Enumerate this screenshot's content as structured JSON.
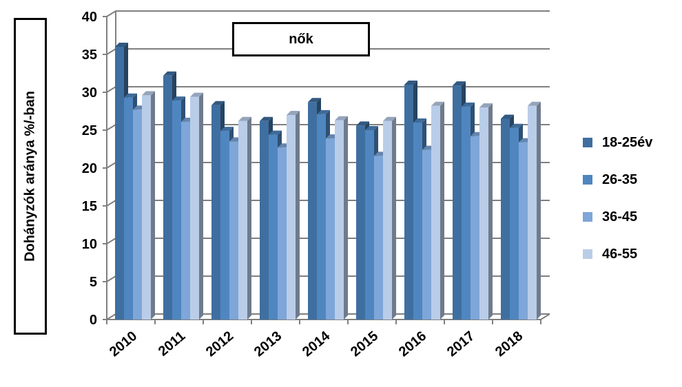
{
  "chart_data": {
    "type": "bar",
    "title": "nők",
    "ylabel": "Dohányzók aránya %/-ban",
    "xlabel": "",
    "ylim": [
      0,
      40
    ],
    "yticks": [
      0,
      5,
      10,
      15,
      20,
      25,
      30,
      35,
      40
    ],
    "grid": true,
    "legend_position": "right",
    "categories": [
      "2010",
      "2011",
      "2012",
      "2013",
      "2014",
      "2015",
      "2016",
      "2017",
      "2018"
    ],
    "series": [
      {
        "name": "18-25év",
        "color": "#3f6fa0",
        "values": [
          36.0,
          32.2,
          28.3,
          26.2,
          28.7,
          25.6,
          31.0,
          30.9,
          26.5
        ]
      },
      {
        "name": "26-35",
        "color": "#4f86c0",
        "values": [
          29.3,
          28.9,
          24.9,
          24.4,
          27.1,
          25.0,
          26.0,
          28.1,
          25.3
        ]
      },
      {
        "name": "36-45",
        "color": "#7ea6d8",
        "values": [
          27.7,
          26.1,
          23.5,
          22.7,
          23.9,
          21.6,
          22.4,
          24.2,
          23.4
        ]
      },
      {
        "name": "46-55",
        "color": "#b9cde9",
        "values": [
          29.6,
          29.4,
          26.2,
          27.0,
          26.3,
          26.2,
          28.2,
          28.0,
          28.2
        ]
      }
    ]
  }
}
